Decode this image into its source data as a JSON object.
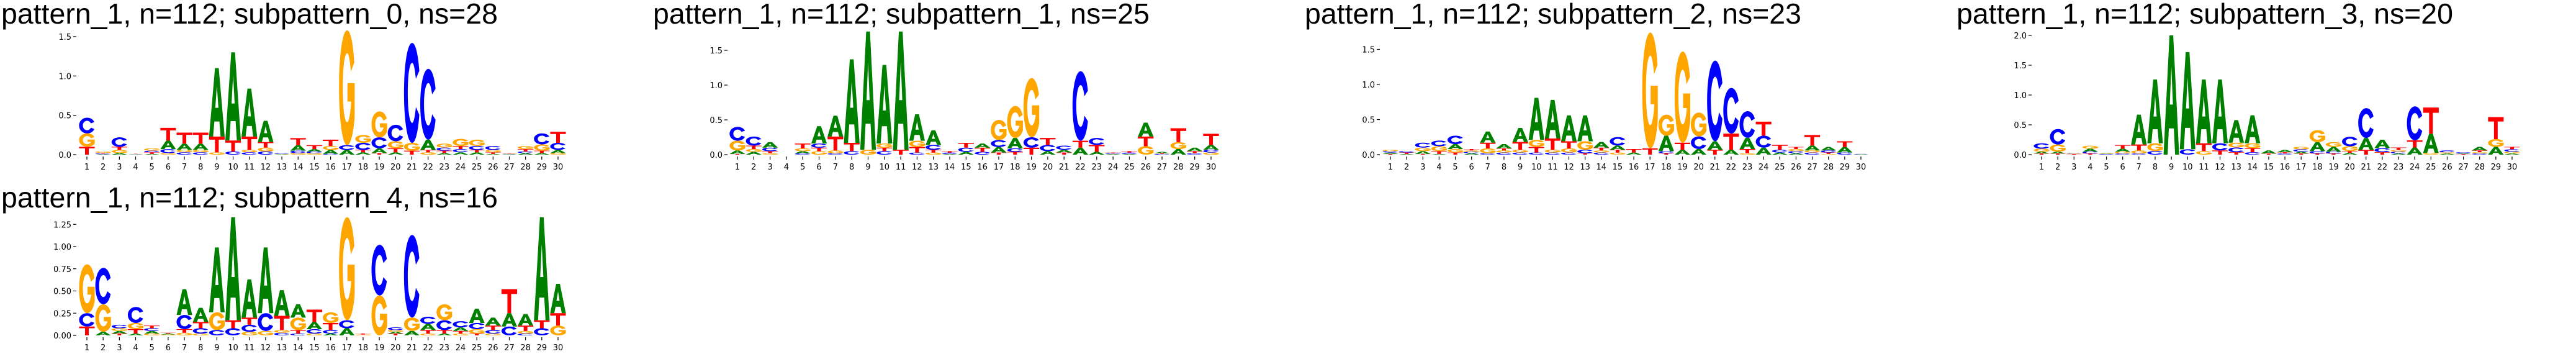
{
  "colors": {
    "A": "#008000",
    "C": "#0000ff",
    "G": "#ffa500",
    "T": "#ff0000"
  },
  "chart_data": [
    {
      "type": "sequence-logo",
      "title": "pattern_1, n=112; subpattern_0, ns=28",
      "yticks": [
        "0.0",
        "0.5",
        "1.0",
        "1.5"
      ],
      "ylim": [
        0,
        1.6
      ],
      "xticks": [
        "1",
        "2",
        "3",
        "4",
        "5",
        "6",
        "7",
        "8",
        "9",
        "10",
        "11",
        "12",
        "13",
        "14",
        "15",
        "16",
        "17",
        "18",
        "19",
        "20",
        "21",
        "22",
        "23",
        "24",
        "25",
        "26",
        "27",
        "28",
        "29",
        "30"
      ],
      "positions": [
        {
          "T": 0.1,
          "C": 0.2,
          "G": 0.17
        },
        {
          "A": 0.005,
          "C": 0.01,
          "T": 0.01,
          "G": 0.015
        },
        {
          "A": 0.02,
          "G": 0.04,
          "T": 0.04,
          "C": 0.12
        },
        {
          "A": 0.003,
          "C": 0.003,
          "G": 0.003,
          "T": 0.003
        },
        {
          "A": 0.01,
          "T": 0.02,
          "C": 0.02,
          "G": 0.03
        },
        {
          "G": 0.02,
          "C": 0.05,
          "A": 0.11,
          "T": 0.16
        },
        {
          "C": 0.03,
          "G": 0.03,
          "A": 0.08,
          "T": 0.14
        },
        {
          "C": 0.03,
          "G": 0.03,
          "A": 0.08,
          "T": 0.14
        },
        {
          "G": 0.03,
          "T": 0.2,
          "A": 0.87
        },
        {
          "C": 0.04,
          "T": 0.14,
          "A": 1.12
        },
        {
          "C": 0.03,
          "G": 0.03,
          "T": 0.17,
          "A": 0.61
        },
        {
          "C": 0.04,
          "G": 0.05,
          "T": 0.07,
          "A": 0.27
        },
        {
          "A": 0.005,
          "G": 0.005,
          "C": 0.01
        },
        {
          "G": 0.02,
          "C": 0.03,
          "A": 0.07,
          "T": 0.09
        },
        {
          "G": 0.02,
          "C": 0.02,
          "A": 0.03,
          "T": 0.05
        },
        {
          "C": 0.01,
          "A": 0.05,
          "G": 0.05,
          "T": 0.08
        },
        {
          "A": 0.06,
          "C": 0.06,
          "G": 1.46
        },
        {
          "A": 0.03,
          "T": 0.03,
          "C": 0.09,
          "G": 0.1
        },
        {
          "T": 0.02,
          "A": 0.06,
          "C": 0.14,
          "G": 0.33
        },
        {
          "A": 0.03,
          "T": 0.05,
          "G": 0.09,
          "C": 0.21
        },
        {
          "T": 0.05,
          "G": 0.1,
          "C": 1.27
        },
        {
          "G": 0.03,
          "T": 0.03,
          "A": 0.13,
          "C": 0.9
        },
        {
          "A": 0.02,
          "T": 0.03,
          "C": 0.04,
          "G": 0.05
        },
        {
          "A": 0.03,
          "C": 0.04,
          "T": 0.04,
          "G": 0.09
        },
        {
          "A": 0.03,
          "T": 0.03,
          "C": 0.05,
          "G": 0.08
        },
        {
          "A": 0.01,
          "T": 0.02,
          "G": 0.03,
          "C": 0.05
        },
        {
          "A": 0.005,
          "C": 0.005,
          "G": 0.005,
          "T": 0.005
        },
        {
          "A": 0.02,
          "C": 0.02,
          "T": 0.03,
          "G": 0.04
        },
        {
          "A": 0.02,
          "T": 0.03,
          "G": 0.08,
          "C": 0.14
        },
        {
          "G": 0.02,
          "A": 0.04,
          "C": 0.09,
          "T": 0.14
        }
      ]
    },
    {
      "type": "sequence-logo",
      "title": "pattern_1, n=112; subpattern_1, ns=25",
      "yticks": [
        "0.0",
        "0.5",
        "1.0",
        "1.5"
      ],
      "ylim": [
        0,
        1.8
      ],
      "xticks": [
        "1",
        "2",
        "3",
        "4",
        "5",
        "6",
        "7",
        "8",
        "9",
        "10",
        "11",
        "12",
        "13",
        "14",
        "15",
        "16",
        "17",
        "18",
        "19",
        "20",
        "21",
        "22",
        "23",
        "24",
        "25",
        "26",
        "27",
        "28",
        "29",
        "30"
      ],
      "positions": [
        {
          "T": 0.01,
          "A": 0.05,
          "G": 0.14,
          "C": 0.2
        },
        {
          "A": 0.04,
          "G": 0.04,
          "T": 0.05,
          "C": 0.13
        },
        {
          "G": 0.02,
          "T": 0.03,
          "C": 0.05,
          "A": 0.08
        },
        {
          "A": 0.002,
          "C": 0.002,
          "G": 0.002,
          "T": 0.002
        },
        {
          "C": 0.02,
          "A": 0.03,
          "G": 0.04,
          "T": 0.07
        },
        {
          "G": 0.05,
          "T": 0.05,
          "C": 0.06,
          "A": 0.25
        },
        {
          "C": 0.02,
          "G": 0.04,
          "T": 0.2,
          "A": 0.3
        },
        {
          "C": 0.05,
          "T": 0.12,
          "A": 1.2
        },
        {
          "G": 0.07,
          "A": 1.7
        },
        {
          "C": 0.05,
          "T": 0.05,
          "G": 0.06,
          "A": 1.13
        },
        {
          "T": 0.07,
          "A": 1.7
        },
        {
          "C": 0.03,
          "T": 0.08,
          "G": 0.09,
          "A": 0.38
        },
        {
          "G": 0.03,
          "T": 0.04,
          "C": 0.07,
          "A": 0.21
        },
        {
          "A": 0.01,
          "C": 0.02,
          "T": 0.02
        },
        {
          "A": 0.04,
          "C": 0.06,
          "T": 0.07
        },
        {
          "C": 0.04,
          "T": 0.06,
          "A": 0.06
        },
        {
          "T": 0.03,
          "A": 0.08,
          "C": 0.1,
          "G": 0.29
        },
        {
          "T": 0.04,
          "C": 0.05,
          "A": 0.15,
          "G": 0.46
        },
        {
          "T": 0.1,
          "C": 0.15,
          "G": 0.85
        },
        {
          "A": 0.05,
          "C": 0.09,
          "T": 0.1
        },
        {
          "T": 0.03,
          "A": 0.04,
          "C": 0.06
        },
        {
          "A": 0.1,
          "T": 0.1,
          "C": 1.0
        },
        {
          "A": 0.04,
          "T": 0.1,
          "C": 0.1
        },
        {
          "A": 0.01,
          "C": 0.01,
          "T": 0.01
        },
        {
          "A": 0.01,
          "C": 0.02,
          "T": 0.02
        },
        {
          "G": 0.12,
          "T": 0.14,
          "A": 0.2
        },
        {
          "C": 0.01,
          "T": 0.01,
          "A": 0.02
        },
        {
          "A": 0.08,
          "G": 0.1,
          "T": 0.2
        },
        {
          "C": 0.02,
          "T": 0.03,
          "A": 0.05
        },
        {
          "G": 0.03,
          "C": 0.04,
          "A": 0.07,
          "T": 0.16
        }
      ]
    },
    {
      "type": "sequence-logo",
      "title": "pattern_1, n=112; subpattern_2, ns=23",
      "yticks": [
        "0.0",
        "0.5",
        "1.0",
        "1.5"
      ],
      "ylim": [
        0,
        1.8
      ],
      "xticks": [
        "1",
        "2",
        "3",
        "4",
        "5",
        "6",
        "7",
        "8",
        "9",
        "10",
        "11",
        "12",
        "13",
        "14",
        "15",
        "16",
        "17",
        "18",
        "19",
        "20",
        "21",
        "22",
        "23",
        "24",
        "25",
        "26",
        "27",
        "28",
        "29",
        "30"
      ],
      "positions": [
        {
          "T": 0.01,
          "A": 0.02,
          "C": 0.02,
          "G": 0.02
        },
        {
          "A": 0.01,
          "T": 0.02,
          "C": 0.02
        },
        {
          "T": 0.01,
          "A": 0.04,
          "G": 0.05,
          "C": 0.07
        },
        {
          "A": 0.01,
          "T": 0.04,
          "G": 0.07,
          "C": 0.08
        },
        {
          "T": 0.03,
          "G": 0.05,
          "A": 0.07,
          "C": 0.12
        },
        {
          "A": 0.02,
          "C": 0.02,
          "G": 0.02,
          "T": 0.02
        },
        {
          "C": 0.02,
          "G": 0.07,
          "T": 0.08,
          "A": 0.16
        },
        {
          "C": 0.03,
          "G": 0.03,
          "T": 0.03,
          "A": 0.06
        },
        {
          "C": 0.03,
          "G": 0.04,
          "T": 0.11,
          "A": 0.2
        },
        {
          "C": 0.03,
          "T": 0.08,
          "G": 0.1,
          "A": 0.6
        },
        {
          "C": 0.03,
          "G": 0.04,
          "T": 0.16,
          "A": 0.55
        },
        {
          "C": 0.03,
          "G": 0.06,
          "T": 0.1,
          "A": 0.37
        },
        {
          "T": 0.02,
          "C": 0.05,
          "G": 0.12,
          "A": 0.37
        },
        {
          "C": 0.03,
          "G": 0.03,
          "T": 0.04,
          "A": 0.08
        },
        {
          "G": 0.03,
          "T": 0.04,
          "A": 0.06,
          "C": 0.12
        },
        {
          "A": 0.03,
          "T": 0.05
        },
        {
          "T": 0.09,
          "G": 1.65
        },
        {
          "T": 0.02,
          "C": 0.03,
          "A": 0.22,
          "G": 0.3
        },
        {
          "A": 0.07,
          "T": 0.1,
          "G": 1.3
        },
        {
          "A": 0.08,
          "C": 0.18,
          "G": 0.34
        },
        {
          "T": 0.07,
          "A": 0.12,
          "C": 1.15
        },
        {
          "A": 0.07,
          "T": 0.23,
          "C": 0.65
        },
        {
          "G": 0.02,
          "T": 0.06,
          "A": 0.16,
          "C": 0.38
        },
        {
          "A": 0.1,
          "C": 0.17,
          "T": 0.2
        },
        {
          "A": 0.03,
          "C": 0.04,
          "T": 0.07
        },
        {
          "A": 0.02,
          "C": 0.03,
          "G": 0.03,
          "T": 0.03
        },
        {
          "C": 0.03,
          "G": 0.03,
          "A": 0.07,
          "T": 0.15
        },
        {
          "G": 0.01,
          "T": 0.02,
          "C": 0.03,
          "A": 0.05
        },
        {
          "C": 0.03,
          "A": 0.08,
          "T": 0.08
        },
        {
          "A": 0.005,
          "C": 0.005
        }
      ]
    },
    {
      "type": "sequence-logo",
      "title": "pattern_1, n=112; subpattern_3, ns=20",
      "yticks": [
        "0.0",
        "0.5",
        "1.0",
        "1.5",
        "2.0"
      ],
      "ylim": [
        0,
        2.0
      ],
      "xticks": [
        "1",
        "2",
        "3",
        "4",
        "5",
        "6",
        "7",
        "8",
        "9",
        "10",
        "11",
        "12",
        "13",
        "14",
        "15",
        "16",
        "17",
        "18",
        "19",
        "20",
        "21",
        "22",
        "23",
        "24",
        "25",
        "26",
        "27",
        "28",
        "29",
        "30"
      ],
      "positions": [
        {
          "T": 0.02,
          "A": 0.03,
          "G": 0.05,
          "C": 0.09
        },
        {
          "T": 0.02,
          "A": 0.03,
          "G": 0.12,
          "C": 0.26
        },
        {
          "T": 0.01,
          "G": 0.01,
          "C": 0.01
        },
        {
          "T": 0.02,
          "C": 0.03,
          "A": 0.05,
          "G": 0.05
        },
        {
          "C": 0.01,
          "G": 0.01,
          "A": 0.01
        },
        {
          "C": 0.02,
          "G": 0.03,
          "A": 0.05,
          "T": 0.06
        },
        {
          "C": 0.02,
          "G": 0.05,
          "T": 0.1,
          "A": 0.5
        },
        {
          "C": 0.06,
          "G": 0.13,
          "A": 1.07
        },
        {
          "A": 2.0
        },
        {
          "C": 0.09,
          "A": 1.63
        },
        {
          "G": 0.06,
          "T": 0.13,
          "A": 1.07
        },
        {
          "T": 0.07,
          "C": 0.12,
          "A": 1.07
        },
        {
          "T": 0.04,
          "C": 0.08,
          "G": 0.08,
          "A": 0.38
        },
        {
          "C": 0.04,
          "T": 0.07,
          "G": 0.08,
          "A": 0.47
        },
        {
          "T": 0.02,
          "A": 0.05
        },
        {
          "C": 0.02,
          "T": 0.02,
          "A": 0.04
        },
        {
          "T": 0.02,
          "A": 0.03,
          "C": 0.04,
          "G": 0.04
        },
        {
          "T": 0.02,
          "C": 0.04,
          "A": 0.15,
          "G": 0.2
        },
        {
          "T": 0.02,
          "C": 0.03,
          "A": 0.08,
          "G": 0.08
        },
        {
          "A": 0.03,
          "T": 0.03,
          "G": 0.08,
          "C": 0.16
        },
        {
          "T": 0.08,
          "A": 0.2,
          "C": 0.5
        },
        {
          "T": 0.04,
          "C": 0.07,
          "A": 0.14
        },
        {
          "A": 0.02,
          "C": 0.03,
          "G": 0.03,
          "T": 0.04
        },
        {
          "A": 0.12,
          "T": 0.12,
          "C": 0.57
        },
        {
          "G": 0.03,
          "A": 0.32,
          "T": 0.44
        },
        {
          "A": 0.02,
          "G": 0.02,
          "C": 0.03
        },
        {
          "T": 0.01,
          "A": 0.01,
          "C": 0.02
        },
        {
          "C": 0.02,
          "G": 0.02,
          "T": 0.03,
          "A": 0.06
        },
        {
          "A": 0.13,
          "G": 0.13,
          "T": 0.37
        },
        {
          "A": 0.02,
          "G": 0.03,
          "C": 0.04,
          "T": 0.04
        }
      ]
    },
    {
      "type": "sequence-logo",
      "title": "pattern_1, n=112; subpattern_4, ns=16",
      "yticks": [
        "0.00",
        "0.25",
        "0.50",
        "0.75",
        "1.00",
        "1.25"
      ],
      "ylim": [
        0,
        1.33
      ],
      "xticks": [
        "1",
        "2",
        "3",
        "4",
        "5",
        "6",
        "7",
        "8",
        "9",
        "10",
        "11",
        "12",
        "13",
        "14",
        "15",
        "16",
        "17",
        "18",
        "19",
        "20",
        "21",
        "22",
        "23",
        "24",
        "25",
        "26",
        "27",
        "28",
        "29",
        "30"
      ],
      "positions": [
        {
          "T": 0.1,
          "C": 0.15,
          "G": 0.55
        },
        {
          "A": 0.04,
          "G": 0.31,
          "C": 0.41
        },
        {
          "T": 0.02,
          "A": 0.03,
          "G": 0.03,
          "C": 0.04
        },
        {
          "A": 0.02,
          "T": 0.05,
          "G": 0.07,
          "C": 0.18
        },
        {
          "G": 0.02,
          "A": 0.03,
          "C": 0.03,
          "T": 0.03
        },
        {
          "G": 0.01,
          "A": 0.01,
          "T": 0.01
        },
        {
          "G": 0.03,
          "T": 0.04,
          "C": 0.16,
          "A": 0.29
        },
        {
          "G": 0.02,
          "C": 0.06,
          "T": 0.07,
          "A": 0.16
        },
        {
          "C": 0.06,
          "G": 0.2,
          "A": 0.73
        },
        {
          "C": 0.08,
          "T": 0.09,
          "A": 1.16
        },
        {
          "G": 0.04,
          "C": 0.08,
          "T": 0.08,
          "A": 0.43
        },
        {
          "G": 0.05,
          "C": 0.2,
          "A": 0.74
        },
        {
          "C": 0.03,
          "G": 0.03,
          "T": 0.16,
          "A": 0.29
        },
        {
          "C": 0.02,
          "T": 0.04,
          "G": 0.14,
          "A": 0.15
        },
        {
          "G": 0.02,
          "C": 0.05,
          "A": 0.08,
          "T": 0.14
        },
        {
          "A": 0.02,
          "C": 0.04,
          "T": 0.08,
          "G": 0.12
        },
        {
          "A": 0.08,
          "C": 0.09,
          "G": 1.16
        },
        {
          "G": 0.01,
          "T": 0.01
        },
        {
          "G": 0.45,
          "C": 0.57
        },
        {
          "T": 0.02,
          "A": 0.02,
          "G": 0.02,
          "C": 0.03
        },
        {
          "A": 0.05,
          "G": 0.15,
          "C": 0.93
        },
        {
          "G": 0.02,
          "T": 0.04,
          "A": 0.07,
          "C": 0.08
        },
        {
          "A": 0.02,
          "T": 0.04,
          "C": 0.11,
          "G": 0.18
        },
        {
          "G": 0.02,
          "T": 0.03,
          "A": 0.04,
          "C": 0.07
        },
        {
          "T": 0.02,
          "G": 0.05,
          "C": 0.07,
          "A": 0.16
        },
        {
          "G": 0.02,
          "C": 0.04,
          "T": 0.05,
          "A": 0.09
        },
        {
          "C": 0.1,
          "A": 0.15,
          "T": 0.27
        },
        {
          "C": 0.02,
          "G": 0.03,
          "T": 0.06,
          "A": 0.13
        },
        {
          "C": 0.08,
          "T": 0.09,
          "A": 1.16
        },
        {
          "G": 0.11,
          "T": 0.14,
          "A": 0.33
        }
      ]
    }
  ]
}
